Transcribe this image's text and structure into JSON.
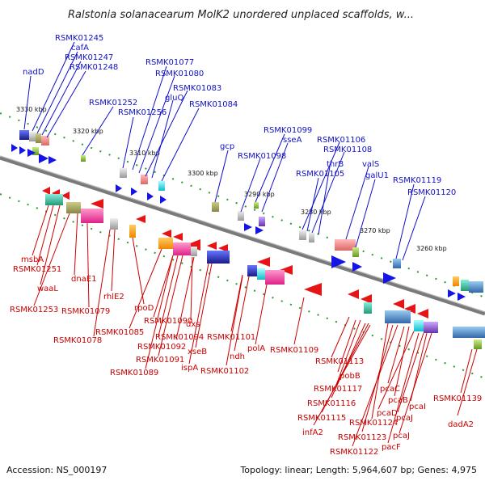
{
  "title": "Ralstonia solanacearum MolK2 unordered unplaced scaffolds, w...",
  "accession": "Accession: NS_000197",
  "topology": "Topology: linear; Length: 5,964,607 bp; Genes: 4,975",
  "ticks": [
    "3330 kbp",
    "3320 kbp",
    "3310 kbp",
    "3300 kbp",
    "3290 kbp",
    "3280 kbp",
    "3270 kbp",
    "3260 kbp"
  ],
  "genes_top": [
    "RSMK01245",
    "cafA",
    "RSMK01247",
    "RSMK01248",
    "nadD",
    "RSMK01077",
    "RSMK01080",
    "RSMK01083",
    "gluQ",
    "RSMK01084",
    "RSMK01252",
    "RSMK01256",
    "gcp",
    "RSMK01099",
    "sseA",
    "RSMK01098",
    "RSMK01106",
    "RSMK01108",
    "thrB",
    "RSMK01105",
    "valS",
    "galU1",
    "RSMK01119",
    "RSMK01120"
  ],
  "genes_bottom": [
    "msbA",
    "RSMK01251",
    "waaL",
    "dnaE1",
    "RSMK01253",
    "RSMK01079",
    "RSMK01078",
    "rhlE2",
    "rpoD",
    "RSMK01085",
    "RSMK01090",
    "RSMK01092",
    "dxs",
    "RSMK01094",
    "RSMK01101",
    "RSMK01091",
    "xseB",
    "ndh",
    "polA",
    "RSMK01109",
    "RSMK01089",
    "ispA",
    "RSMK01102",
    "RSMK01113",
    "pobB",
    "RSMK01117",
    "RSMK01116",
    "RSMK01115",
    "infA2",
    "RSMK01124",
    "RSMK01123",
    "RSMK01122",
    "pcaC",
    "pcaB",
    "pcaD",
    "pcaI",
    "pcaJ",
    "pcaJ",
    "pacF",
    "RSMK01139",
    "dadA2"
  ],
  "colors": {
    "top_label": "#1010c8",
    "bottom_label": "#cc0000",
    "forward_gene": "#1414e6",
    "reverse_gene": "#e61414",
    "backbone": "#7a7a7a",
    "dots": "#2a9a2a"
  }
}
